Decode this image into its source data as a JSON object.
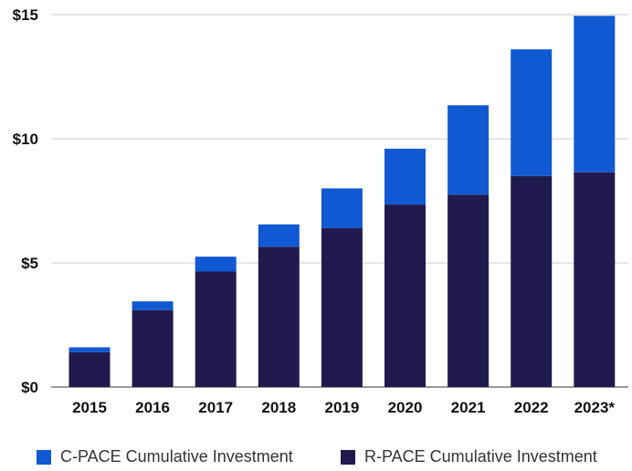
{
  "chart_data": {
    "type": "bar",
    "stacked": true,
    "categories": [
      "2015",
      "2016",
      "2017",
      "2018",
      "2019",
      "2020",
      "2021",
      "2022",
      "2023*"
    ],
    "series": [
      {
        "name": "R-PACE Cumulative Investment",
        "color": "#211a4e",
        "values": [
          1.4,
          3.1,
          4.65,
          5.65,
          6.4,
          7.35,
          7.75,
          8.5,
          8.65
        ]
      },
      {
        "name": "C-PACE Cumulative Investment",
        "color": "#1159d2",
        "values": [
          0.2,
          0.35,
          0.6,
          0.9,
          1.6,
          2.25,
          3.6,
          5.1,
          6.3
        ]
      }
    ],
    "yticks": [
      "$0",
      "$5",
      "$10",
      "$15"
    ],
    "ylim": [
      0,
      15
    ],
    "grid": true,
    "legend_position": "bottom"
  },
  "legend": {
    "items": [
      {
        "label": "C-PACE Cumulative Investment",
        "color": "#1159d2"
      },
      {
        "label": "R-PACE Cumulative Investment",
        "color": "#211a4e"
      }
    ]
  }
}
